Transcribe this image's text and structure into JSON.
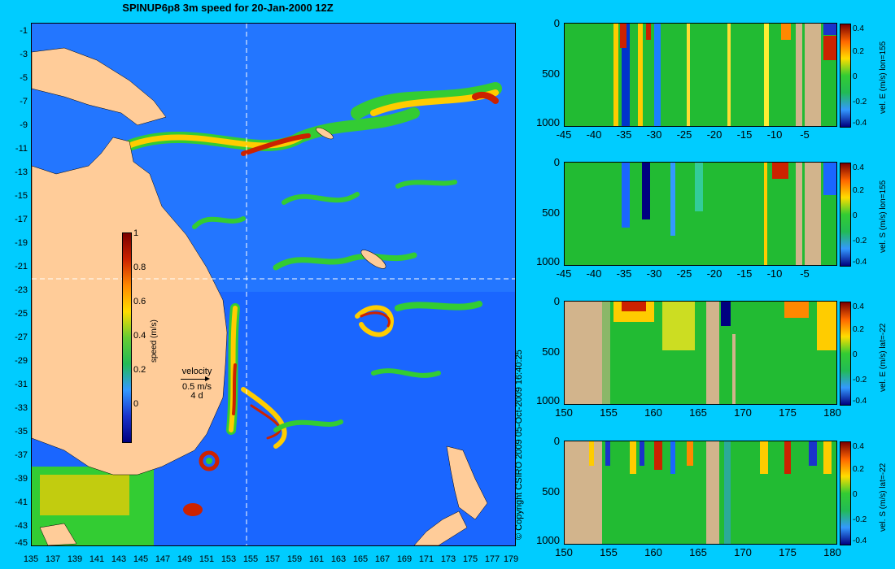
{
  "title": "SPINUP6p8 3m speed for 20-Jan-2000 12Z",
  "map": {
    "y_ticks": [
      "-1",
      "-3",
      "-5",
      "-7",
      "-9",
      "-11",
      "-13",
      "-15",
      "-17",
      "-19",
      "-21",
      "-23",
      "-25",
      "-27",
      "-29",
      "-31",
      "-33",
      "-35",
      "-37",
      "-39",
      "-41",
      "-43",
      "-45"
    ],
    "x_ticks": [
      "135",
      "137",
      "139",
      "141",
      "143",
      "145",
      "147",
      "149",
      "151",
      "153",
      "155",
      "157",
      "159",
      "161",
      "163",
      "165",
      "167",
      "169",
      "171",
      "173",
      "175",
      "177",
      "179"
    ],
    "colorbar": {
      "ticks": [
        "1",
        "0.8",
        "0.6",
        "0.4",
        "0.2",
        "0"
      ],
      "label": "speed (m/s)"
    },
    "velocity_key": {
      "title": "velocity",
      "speed": "0.5 m/s",
      "duration": "4 d"
    },
    "copyright": "© Copyright CSIRO 2009   05-Oct-2009 16:40:25"
  },
  "panels": [
    {
      "y_ticks": [
        "0",
        "500",
        "1000"
      ],
      "x_ticks": [
        "-45",
        "-40",
        "-35",
        "-30",
        "-25",
        "-20",
        "-15",
        "-10",
        "-5"
      ],
      "cbar_ticks": [
        "0.4",
        "0.2",
        "0",
        "-0.2",
        "-0.4"
      ],
      "cbar_label": "vel. E (m/s) lon=155"
    },
    {
      "y_ticks": [
        "0",
        "500",
        "1000"
      ],
      "x_ticks": [
        "-45",
        "-40",
        "-35",
        "-30",
        "-25",
        "-20",
        "-15",
        "-10",
        "-5"
      ],
      "cbar_ticks": [
        "0.4",
        "0.2",
        "0",
        "-0.2",
        "-0.4"
      ],
      "cbar_label": "vel. S (m/s) lon=155"
    },
    {
      "y_ticks": [
        "0",
        "500",
        "1000"
      ],
      "x_ticks": [
        "150",
        "155",
        "160",
        "165",
        "170",
        "175",
        "180"
      ],
      "cbar_ticks": [
        "0.4",
        "0.2",
        "0",
        "-0.2",
        "-0.4"
      ],
      "cbar_label": "vel. E (m/s) lat=-22"
    },
    {
      "y_ticks": [
        "0",
        "500",
        "1000"
      ],
      "x_ticks": [
        "150",
        "155",
        "160",
        "165",
        "170",
        "175",
        "180"
      ],
      "cbar_ticks": [
        "0.4",
        "0.2",
        "0",
        "-0.2",
        "-0.4"
      ],
      "cbar_label": "vel. S (m/s) lat=-22"
    }
  ],
  "colors": {
    "background": "#00ccff",
    "land": "#ffcc99",
    "section_land": "#d2b48c"
  }
}
